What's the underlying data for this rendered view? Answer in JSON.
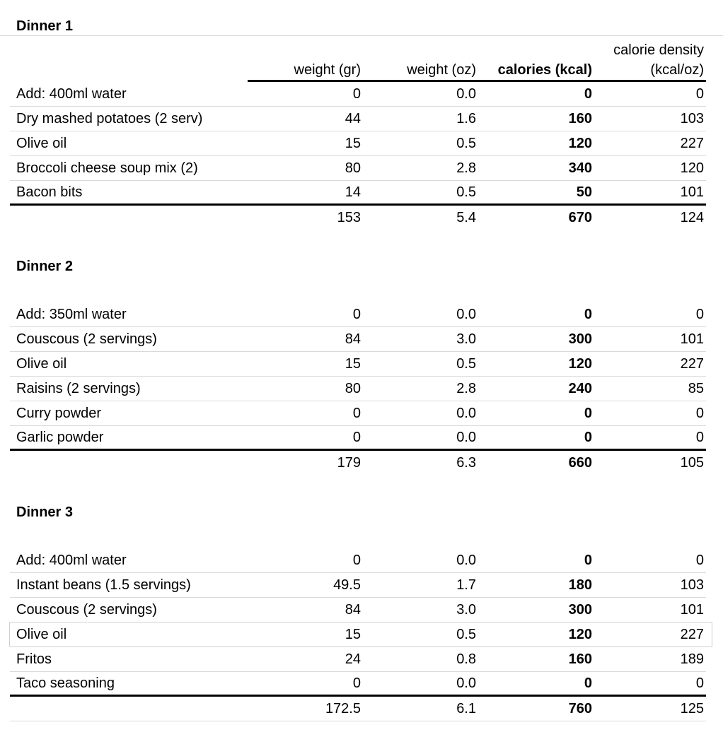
{
  "page": {
    "background": "#ffffff",
    "text_color": "#000000",
    "row_separator_color": "#dadada",
    "strong_rule_color": "#000000",
    "frozen_divider_color": "#d9d9d9",
    "highlight_border_color": "#cfcfcf"
  },
  "column_headers": {
    "item": "",
    "weight_gr": "weight (gr)",
    "weight_oz": "weight (oz)",
    "calories": "calories (kcal)",
    "density_line1": "calorie density",
    "density_line2": "(kcal/oz)"
  },
  "sections": [
    {
      "title": "Dinner 1",
      "rows": [
        {
          "item": "Add: 400ml water",
          "weight_gr": "0",
          "weight_oz": "0.0",
          "calories": "0",
          "density": "0"
        },
        {
          "item": "Dry mashed potatoes (2 serv)",
          "weight_gr": "44",
          "weight_oz": "1.6",
          "calories": "160",
          "density": "103"
        },
        {
          "item": "Olive oil",
          "weight_gr": "15",
          "weight_oz": "0.5",
          "calories": "120",
          "density": "227"
        },
        {
          "item": "Broccoli cheese soup mix (2)",
          "weight_gr": "80",
          "weight_oz": "2.8",
          "calories": "340",
          "density": "120"
        },
        {
          "item": "Bacon bits",
          "weight_gr": "14",
          "weight_oz": "0.5",
          "calories": "50",
          "density": "101"
        }
      ],
      "totals": {
        "weight_gr": "153",
        "weight_oz": "5.4",
        "calories": "670",
        "density": "124"
      }
    },
    {
      "title": "Dinner 2",
      "rows": [
        {
          "item": "Add: 350ml water",
          "weight_gr": "0",
          "weight_oz": "0.0",
          "calories": "0",
          "density": "0"
        },
        {
          "item": "Couscous (2 servings)",
          "weight_gr": "84",
          "weight_oz": "3.0",
          "calories": "300",
          "density": "101"
        },
        {
          "item": "Olive oil",
          "weight_gr": "15",
          "weight_oz": "0.5",
          "calories": "120",
          "density": "227"
        },
        {
          "item": "Raisins (2 servings)",
          "weight_gr": "80",
          "weight_oz": "2.8",
          "calories": "240",
          "density": "85"
        },
        {
          "item": "Curry powder",
          "weight_gr": "0",
          "weight_oz": "0.0",
          "calories": "0",
          "density": "0"
        },
        {
          "item": "Garlic powder",
          "weight_gr": "0",
          "weight_oz": "0.0",
          "calories": "0",
          "density": "0"
        }
      ],
      "totals": {
        "weight_gr": "179",
        "weight_oz": "6.3",
        "calories": "660",
        "density": "105"
      }
    },
    {
      "title": "Dinner 3",
      "rows": [
        {
          "item": "Add: 400ml water",
          "weight_gr": "0",
          "weight_oz": "0.0",
          "calories": "0",
          "density": "0"
        },
        {
          "item": "Instant beans (1.5 servings)",
          "weight_gr": "49.5",
          "weight_oz": "1.7",
          "calories": "180",
          "density": "103"
        },
        {
          "item": "Couscous (2 servings)",
          "weight_gr": "84",
          "weight_oz": "3.0",
          "calories": "300",
          "density": "101"
        },
        {
          "item": "Olive oil",
          "weight_gr": "15",
          "weight_oz": "0.5",
          "calories": "120",
          "density": "227",
          "highlighted": true
        },
        {
          "item": "Fritos",
          "weight_gr": "24",
          "weight_oz": "0.8",
          "calories": "160",
          "density": "189"
        },
        {
          "item": "Taco seasoning",
          "weight_gr": "0",
          "weight_oz": "0.0",
          "calories": "0",
          "density": "0"
        }
      ],
      "totals": {
        "weight_gr": "172.5",
        "weight_oz": "6.1",
        "calories": "760",
        "density": "125"
      }
    }
  ]
}
